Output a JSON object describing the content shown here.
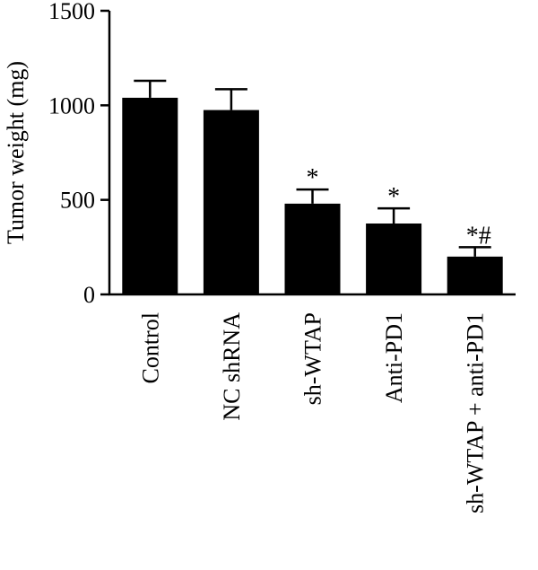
{
  "chart_data": {
    "type": "bar",
    "title": "",
    "xlabel": "",
    "ylabel": "Tumor weight (mg)",
    "ylim": [
      0,
      1500
    ],
    "yticks": [
      0,
      500,
      1000,
      1500
    ],
    "grid": false,
    "categories": [
      "Control",
      "NC shRNA",
      "sh-WTAP",
      "Anti-PD1",
      "sh-WTAP + anti-PD1"
    ],
    "values": [
      1040,
      975,
      480,
      375,
      200
    ],
    "error": [
      90,
      110,
      75,
      80,
      50
    ],
    "annotations": [
      "",
      "",
      "*",
      "*",
      "*#"
    ]
  }
}
